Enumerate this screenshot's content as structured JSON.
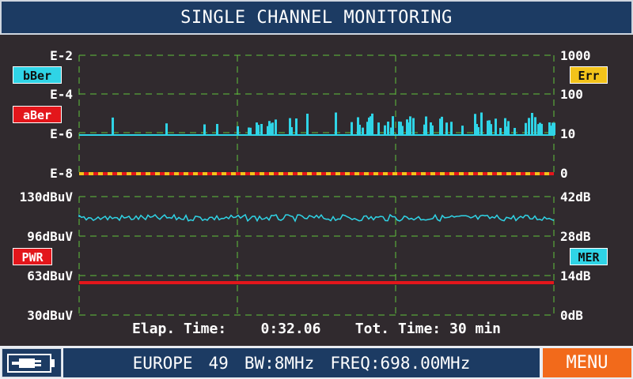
{
  "title": "SINGLE CHANNEL MONITORING",
  "colors": {
    "background": "#302a2e",
    "grid": "#5fc13c",
    "bber": "#2fd4e6",
    "aber": "#e3161b",
    "err": "#f3c31a",
    "pwr": "#e3161b",
    "mer": "#2fd4e6",
    "menu": "#f26a1b",
    "title_bar": "#1c3b63"
  },
  "ber_panel": {
    "left_ticks": [
      "E-2",
      "E-4",
      "E-6",
      "E-8"
    ],
    "right_ticks": [
      "1000",
      "100",
      "10",
      "0"
    ],
    "badges": {
      "bber": "bBer",
      "aber": "aBer",
      "err": "Err"
    }
  },
  "level_panel": {
    "left_ticks": [
      "130dBuV",
      "96dBuV",
      "63dBuV",
      "30dBuV"
    ],
    "right_ticks": [
      "42dB",
      "28dB",
      "14dB",
      "0dB"
    ],
    "badges": {
      "pwr": "PWR",
      "mer": "MER"
    }
  },
  "chart_data": [
    {
      "type": "line",
      "panel": "ber",
      "y_scale": "log",
      "y_range_left": [
        "E-8",
        "E-2"
      ],
      "y_range_right": [
        0,
        1000
      ],
      "series": [
        {
          "name": "bBer",
          "color": "#2fd4e6",
          "baseline": "E-6",
          "description_values": "mostly E-6 with frequent spikes up to ~E-5.5"
        },
        {
          "name": "aBer",
          "color": "#e3161b",
          "value": "E-8"
        },
        {
          "name": "Err",
          "color": "#f3c31a",
          "value": 0
        }
      ]
    },
    {
      "type": "line",
      "panel": "level",
      "y_range_left": [
        30,
        130
      ],
      "y_range_right": [
        0,
        42
      ],
      "series": [
        {
          "name": "MER",
          "color": "#2fd4e6",
          "value_db": 33
        },
        {
          "name": "PWR",
          "color": "#e3161b",
          "value_dbuv": 58
        }
      ]
    }
  ],
  "elapsed": {
    "elap_label": "Elap. Time:",
    "elap_value": "0:32.06",
    "tot_label": "Tot. Time:",
    "tot_value": "30 min"
  },
  "status": {
    "region": "EUROPE",
    "channel": "49",
    "bw": "BW:8MHz",
    "freq": "FREQ:698.00MHz"
  },
  "menu_label": "MENU",
  "battery_icon": "battery-charging-icon"
}
